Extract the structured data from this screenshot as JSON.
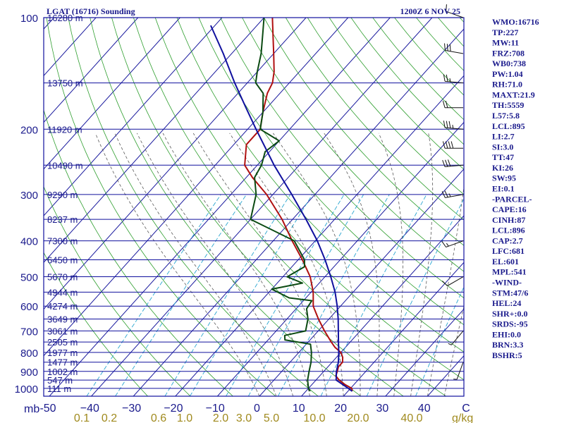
{
  "chart_data": {
    "type": "line",
    "title_left": "LGAT (16716) Sounding",
    "title_right": "1200Z  6 NOV 25",
    "pressure_ticks": [
      100,
      200,
      300,
      400,
      500,
      600,
      700,
      800,
      900,
      1000
    ],
    "height_levels": [
      {
        "p": 100,
        "label": "16280 m"
      },
      {
        "p": 150,
        "label": "13750 m"
      },
      {
        "p": 200,
        "label": "11920 m"
      },
      {
        "p": 250,
        "label": "10490 m"
      },
      {
        "p": 300,
        "label": "9290 m"
      },
      {
        "p": 350,
        "label": "8237 m"
      },
      {
        "p": 400,
        "label": "7300 m"
      },
      {
        "p": 450,
        "label": "6450 m"
      },
      {
        "p": 500,
        "label": "5670 m"
      },
      {
        "p": 550,
        "label": "4944 m"
      },
      {
        "p": 600,
        "label": "4274 m"
      },
      {
        "p": 650,
        "label": "3649 m"
      },
      {
        "p": 700,
        "label": "3061 m"
      },
      {
        "p": 750,
        "label": "2505 m"
      },
      {
        "p": 800,
        "label": "1977 m"
      },
      {
        "p": 850,
        "label": "1477 m"
      },
      {
        "p": 900,
        "label": "1002 m"
      },
      {
        "p": 950,
        "label": "547 m"
      },
      {
        "p": 1000,
        "label": "111 m"
      }
    ],
    "x_axis": {
      "unit_left": "mb",
      "unit_right": "g/kg",
      "range_c": [
        -50,
        50
      ]
    },
    "temperature_ticks": [
      "-50",
      "−40",
      "−30",
      "−20",
      "−10",
      "0",
      "10",
      "20",
      "30",
      "40",
      "C"
    ],
    "mixing_ratio_labels": [
      {
        "w": 0.1,
        "label": "0.1"
      },
      {
        "w": 0.2,
        "label": "0.2"
      },
      {
        "w": 0.6,
        "label": "0.6"
      },
      {
        "w": 1.0,
        "label": "1.0"
      },
      {
        "w": 2.0,
        "label": "2.0"
      },
      {
        "w": 3.0,
        "label": "3.0"
      },
      {
        "w": 5.0,
        "label": "5.0"
      },
      {
        "w": 10.0,
        "label": "10.0"
      },
      {
        "w": 20.0,
        "label": "20.0"
      },
      {
        "w": 40.0,
        "label": "40.0"
      }
    ],
    "series": [
      {
        "key": "temperature",
        "color": "#b01010",
        "points": [
          [
            1018,
            21
          ],
          [
            1000,
            20.3
          ],
          [
            975,
            17.7
          ],
          [
            950,
            15.5
          ],
          [
            925,
            13.8
          ],
          [
            900,
            13.2
          ],
          [
            875,
            12.5
          ],
          [
            850,
            12.5
          ],
          [
            825,
            11.5
          ],
          [
            800,
            10
          ],
          [
            775,
            7.5
          ],
          [
            750,
            5.5
          ],
          [
            700,
            1.5
          ],
          [
            650,
            -2.5
          ],
          [
            600,
            -6.5
          ],
          [
            550,
            -9.5
          ],
          [
            500,
            -13.5
          ],
          [
            450,
            -19
          ],
          [
            400,
            -25.5
          ],
          [
            350,
            -32.5
          ],
          [
            300,
            -41.5
          ],
          [
            270,
            -48.5
          ],
          [
            250,
            -53
          ],
          [
            220,
            -57
          ],
          [
            200,
            -57
          ],
          [
            180,
            -60
          ],
          [
            160,
            -63
          ],
          [
            150,
            -64
          ],
          [
            140,
            -66
          ],
          [
            125,
            -70
          ],
          [
            115,
            -73
          ],
          [
            100,
            -78
          ]
        ]
      },
      {
        "key": "dewpoint",
        "color": "#0b4a12",
        "points": [
          [
            1018,
            11
          ],
          [
            1000,
            10
          ],
          [
            950,
            8
          ],
          [
            900,
            6.5
          ],
          [
            850,
            5
          ],
          [
            800,
            3
          ],
          [
            760,
            1
          ],
          [
            740,
            -6
          ],
          [
            720,
            -7
          ],
          [
            700,
            -3
          ],
          [
            650,
            -5
          ],
          [
            610,
            -7.5
          ],
          [
            580,
            -8
          ],
          [
            570,
            -14
          ],
          [
            540,
            -20
          ],
          [
            520,
            -14
          ],
          [
            500,
            -19
          ],
          [
            470,
            -17
          ],
          [
            450,
            -18.5
          ],
          [
            400,
            -25
          ],
          [
            350,
            -40
          ],
          [
            300,
            -44
          ],
          [
            270,
            -48
          ],
          [
            250,
            -49
          ],
          [
            230,
            -51
          ],
          [
            215,
            -50
          ],
          [
            200,
            -57
          ],
          [
            180,
            -60
          ],
          [
            160,
            -64
          ],
          [
            150,
            -68
          ],
          [
            140,
            -70
          ],
          [
            125,
            -73
          ],
          [
            110,
            -77
          ],
          [
            100,
            -80
          ]
        ]
      },
      {
        "key": "parcel",
        "color": "#10109e",
        "points": [
          [
            1018,
            21
          ],
          [
            1000,
            19.5
          ],
          [
            950,
            14.8
          ],
          [
            900,
            13
          ],
          [
            850,
            11.5
          ],
          [
            800,
            9.5
          ],
          [
            750,
            7.2
          ],
          [
            700,
            4.8
          ],
          [
            650,
            2.2
          ],
          [
            600,
            -0.8
          ],
          [
            550,
            -4.3
          ],
          [
            500,
            -8.6
          ],
          [
            450,
            -13.6
          ],
          [
            400,
            -19.5
          ],
          [
            350,
            -26.8
          ],
          [
            300,
            -35.5
          ],
          [
            250,
            -46
          ],
          [
            200,
            -58
          ],
          [
            175,
            -65
          ],
          [
            150,
            -73
          ],
          [
            125,
            -82
          ],
          [
            105,
            -91
          ]
        ]
      }
    ],
    "wind_barbs": [
      {
        "p": 100,
        "dir": 290,
        "spd": 10
      },
      {
        "p": 125,
        "dir": 280,
        "spd": 30
      },
      {
        "p": 150,
        "dir": 275,
        "spd": 25
      },
      {
        "p": 175,
        "dir": 270,
        "spd": 20
      },
      {
        "p": 200,
        "dir": 275,
        "spd": 35
      },
      {
        "p": 225,
        "dir": 270,
        "spd": 40
      },
      {
        "p": 250,
        "dir": 265,
        "spd": 30
      },
      {
        "p": 300,
        "dir": 260,
        "spd": 25
      },
      {
        "p": 400,
        "dir": 250,
        "spd": 15
      },
      {
        "p": 500,
        "dir": 240,
        "spd": 10
      },
      {
        "p": 700,
        "dir": 220,
        "spd": 5
      },
      {
        "p": 850,
        "dir": 200,
        "spd": 5
      }
    ],
    "indices": [
      "WMO:16716",
      "TP:227",
      "MW:11",
      "FRZ:708",
      "WB0:738",
      "PW:1.04",
      "RH:71.0",
      "MAXT:21.9",
      "TH:5559",
      "L57:5.8",
      "LCL:895",
      "LI:2.7",
      "SI:3.0",
      "TT:47",
      "KI:26",
      "SW:95",
      "EI:0.1",
      "-PARCEL-",
      "CAPE:16",
      "CINH:87",
      "LCL:896",
      "CAP:2.7",
      "LFC:681",
      "EL:601",
      "MPL:541",
      "-WIND-",
      "STM:47/6",
      "HEL:24",
      "SHR+:0.0",
      "SRDS:-95",
      "EHI:0.0",
      "BRN:3.3",
      "BSHR:5"
    ],
    "colors": {
      "frame": "#10109e",
      "isobar": "#10109e",
      "isotherm": "#1a1a9e",
      "dry_adiabat": "#2e9e2e",
      "moist_adiabat": "#5a5a5a",
      "mixing_ratio": "#2aa6d0",
      "label_blue": "#1a1a8c",
      "label_gold": "#a08a1e"
    }
  }
}
